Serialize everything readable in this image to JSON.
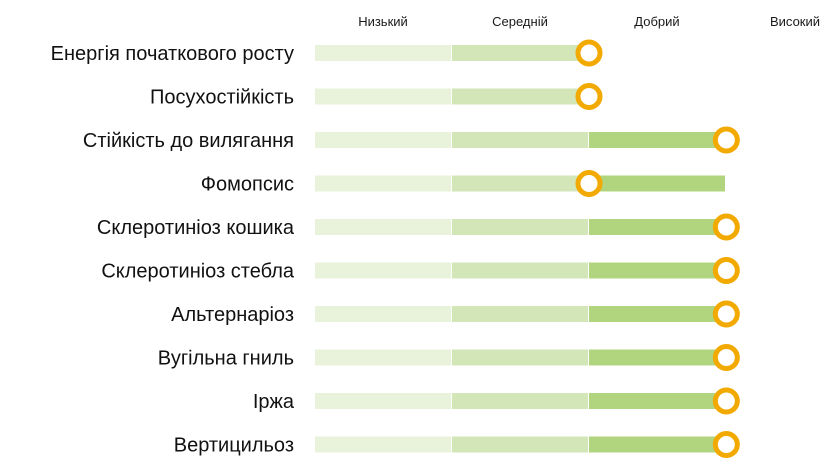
{
  "chart_data": {
    "type": "bar",
    "title": "",
    "xlabel": "",
    "ylabel": "",
    "scale_levels": [
      "Низький",
      "Середній",
      "Добрий",
      "Високий"
    ],
    "scale_values": [
      1,
      2,
      3,
      4
    ],
    "xlim": [
      1,
      4
    ],
    "traits": [
      {
        "name": "Енергія початкового росту",
        "bar_level": 2,
        "score": 2.5
      },
      {
        "name": "Посухостійкість",
        "bar_level": 2,
        "score": 2.5
      },
      {
        "name": "Стійкість до вилягання",
        "bar_level": 3,
        "score": 3.5
      },
      {
        "name": "Фомопсис",
        "bar_level": 3,
        "score": 2.5
      },
      {
        "name": "Склеротиніоз кошика",
        "bar_level": 3,
        "score": 3.5
      },
      {
        "name": "Склеротиніоз стебла",
        "bar_level": 3,
        "score": 3.5
      },
      {
        "name": "Альтернаріоз",
        "bar_level": 3,
        "score": 3.5
      },
      {
        "name": "Вугільна гниль",
        "bar_level": 3,
        "score": 3.5
      },
      {
        "name": "Іржа",
        "bar_level": 3,
        "score": 3.5
      },
      {
        "name": "Вертицильоз",
        "bar_level": 3,
        "score": 3.5
      }
    ],
    "colors": {
      "segments": [
        "#e9f2db",
        "#d3e6b8",
        "#b1d47e"
      ],
      "marker": "#f2a900",
      "marker_fill": "#ffffff"
    }
  }
}
